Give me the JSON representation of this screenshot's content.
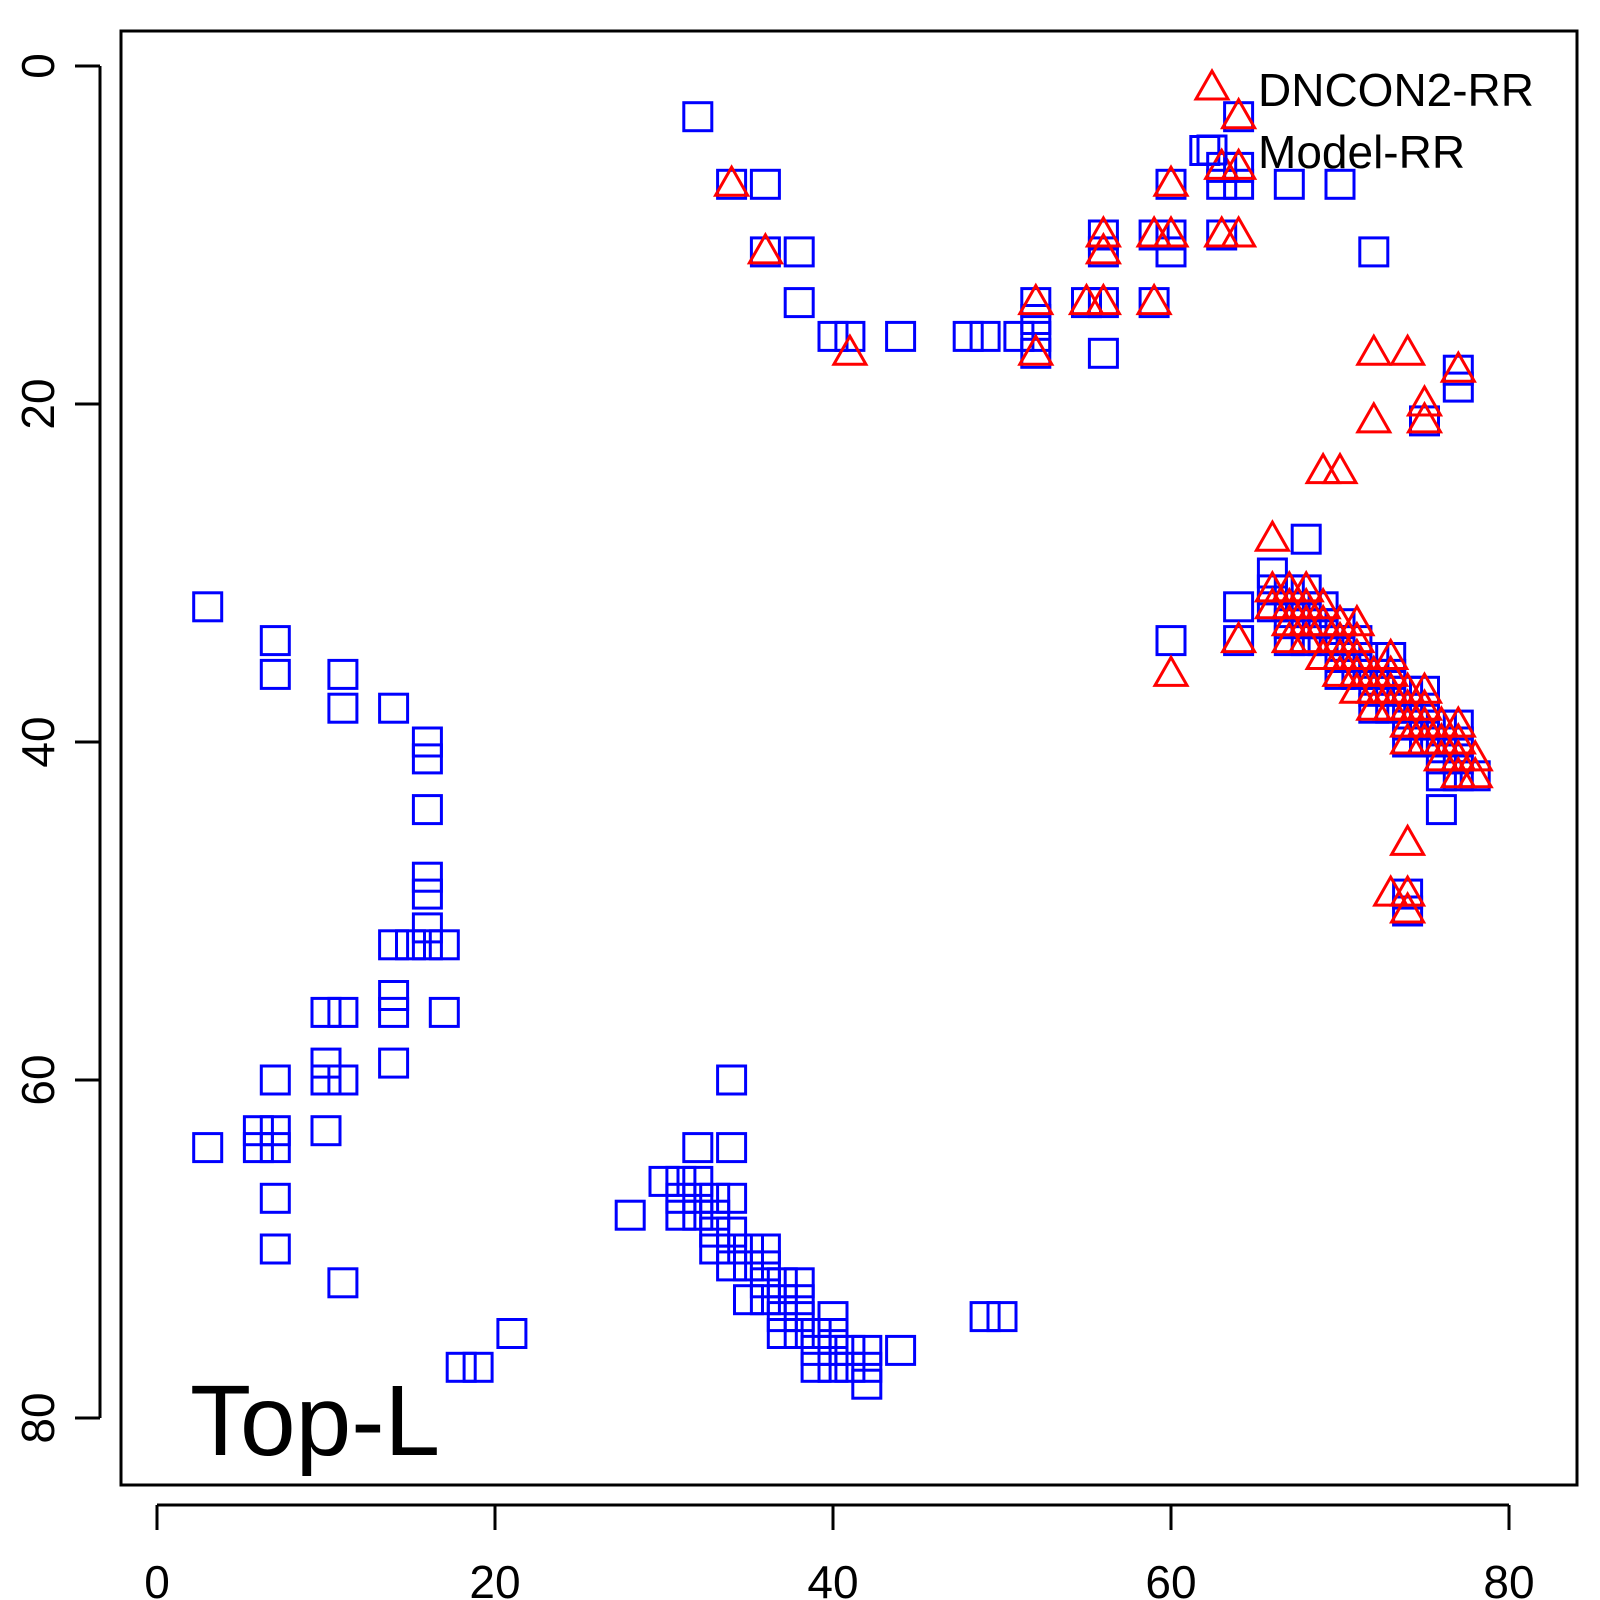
{
  "chart_data": {
    "type": "scatter",
    "xlim": [
      -2,
      84
    ],
    "ylim": [
      0,
      84
    ],
    "y_inverted": true,
    "x_ticks": [
      0,
      20,
      40,
      60,
      80
    ],
    "y_ticks": [
      0,
      20,
      40,
      60,
      80
    ],
    "annotation": "Top-L",
    "legend_position": "top-right",
    "series": [
      {
        "name": "DNCON2-RR",
        "marker": "triangle",
        "color": "#ff0000",
        "points": [
          [
            34,
            7
          ],
          [
            36,
            11
          ],
          [
            41,
            17
          ],
          [
            52,
            14
          ],
          [
            52,
            17
          ],
          [
            55,
            14
          ],
          [
            56,
            10
          ],
          [
            56,
            11
          ],
          [
            56,
            14
          ],
          [
            59,
            10
          ],
          [
            59,
            14
          ],
          [
            60,
            7
          ],
          [
            60,
            10
          ],
          [
            60,
            36
          ],
          [
            63,
            6
          ],
          [
            63,
            10
          ],
          [
            64,
            3
          ],
          [
            64,
            6
          ],
          [
            64,
            10
          ],
          [
            64,
            34
          ],
          [
            66,
            28
          ],
          [
            66,
            31
          ],
          [
            66,
            32
          ],
          [
            67,
            31
          ],
          [
            67,
            32
          ],
          [
            67,
            33
          ],
          [
            67,
            34
          ],
          [
            68,
            31
          ],
          [
            68,
            32
          ],
          [
            68,
            33
          ],
          [
            68,
            34
          ],
          [
            69,
            24
          ],
          [
            69,
            32
          ],
          [
            69,
            33
          ],
          [
            69,
            35
          ],
          [
            70,
            24
          ],
          [
            70,
            33
          ],
          [
            70,
            34
          ],
          [
            70,
            35
          ],
          [
            70,
            36
          ],
          [
            71,
            33
          ],
          [
            71,
            34
          ],
          [
            71,
            35
          ],
          [
            71,
            36
          ],
          [
            71,
            37
          ],
          [
            72,
            17
          ],
          [
            72,
            21
          ],
          [
            72,
            36
          ],
          [
            72,
            37
          ],
          [
            72,
            38
          ],
          [
            73,
            35
          ],
          [
            73,
            36
          ],
          [
            73,
            37
          ],
          [
            73,
            38
          ],
          [
            73,
            49
          ],
          [
            74,
            17
          ],
          [
            74,
            37
          ],
          [
            74,
            38
          ],
          [
            74,
            39
          ],
          [
            74,
            40
          ],
          [
            74,
            46
          ],
          [
            74,
            49
          ],
          [
            74,
            50
          ],
          [
            75,
            20
          ],
          [
            75,
            21
          ],
          [
            75,
            37
          ],
          [
            75,
            38
          ],
          [
            75,
            39
          ],
          [
            75,
            40
          ],
          [
            76,
            39
          ],
          [
            76,
            40
          ],
          [
            76,
            41
          ],
          [
            77,
            18
          ],
          [
            77,
            39
          ],
          [
            77,
            40
          ],
          [
            77,
            41
          ],
          [
            77,
            42
          ],
          [
            78,
            41
          ],
          [
            78,
            42
          ]
        ]
      },
      {
        "name": "Model-RR",
        "marker": "square",
        "color": "#0000ff",
        "points": [
          [
            3,
            32
          ],
          [
            3,
            64
          ],
          [
            6,
            63
          ],
          [
            6,
            64
          ],
          [
            7,
            34
          ],
          [
            7,
            36
          ],
          [
            7,
            60
          ],
          [
            7,
            63
          ],
          [
            7,
            64
          ],
          [
            7,
            67
          ],
          [
            7,
            70
          ],
          [
            10,
            56
          ],
          [
            10,
            59
          ],
          [
            10,
            60
          ],
          [
            10,
            63
          ],
          [
            11,
            36
          ],
          [
            11,
            38
          ],
          [
            11,
            56
          ],
          [
            11,
            60
          ],
          [
            11,
            72
          ],
          [
            14,
            38
          ],
          [
            14,
            52
          ],
          [
            14,
            55
          ],
          [
            14,
            56
          ],
          [
            14,
            59
          ],
          [
            15,
            52
          ],
          [
            16,
            40
          ],
          [
            16,
            41
          ],
          [
            16,
            44
          ],
          [
            16,
            48
          ],
          [
            16,
            49
          ],
          [
            16,
            51
          ],
          [
            16,
            52
          ],
          [
            17,
            52
          ],
          [
            17,
            56
          ],
          [
            18,
            77
          ],
          [
            19,
            77
          ],
          [
            21,
            75
          ],
          [
            28,
            68
          ],
          [
            30,
            66
          ],
          [
            31,
            66
          ],
          [
            31,
            67
          ],
          [
            31,
            68
          ],
          [
            32,
            3
          ],
          [
            32,
            64
          ],
          [
            32,
            66
          ],
          [
            32,
            67
          ],
          [
            32,
            68
          ],
          [
            33,
            67
          ],
          [
            33,
            68
          ],
          [
            33,
            69
          ],
          [
            33,
            70
          ],
          [
            34,
            7
          ],
          [
            34,
            60
          ],
          [
            34,
            64
          ],
          [
            34,
            67
          ],
          [
            34,
            69
          ],
          [
            34,
            70
          ],
          [
            34,
            71
          ],
          [
            35,
            70
          ],
          [
            35,
            71
          ],
          [
            35,
            73
          ],
          [
            36,
            7
          ],
          [
            36,
            11
          ],
          [
            36,
            70
          ],
          [
            36,
            71
          ],
          [
            36,
            72
          ],
          [
            36,
            73
          ],
          [
            37,
            72
          ],
          [
            37,
            73
          ],
          [
            37,
            74
          ],
          [
            37,
            75
          ],
          [
            38,
            11
          ],
          [
            38,
            14
          ],
          [
            38,
            72
          ],
          [
            38,
            73
          ],
          [
            38,
            74
          ],
          [
            38,
            75
          ],
          [
            39,
            75
          ],
          [
            39,
            76
          ],
          [
            39,
            77
          ],
          [
            40,
            16
          ],
          [
            40,
            74
          ],
          [
            40,
            75
          ],
          [
            40,
            76
          ],
          [
            40,
            77
          ],
          [
            41,
            16
          ],
          [
            41,
            76
          ],
          [
            41,
            77
          ],
          [
            42,
            76
          ],
          [
            42,
            77
          ],
          [
            42,
            78
          ],
          [
            44,
            16
          ],
          [
            44,
            76
          ],
          [
            48,
            16
          ],
          [
            49,
            16
          ],
          [
            49,
            74
          ],
          [
            50,
            74
          ],
          [
            51,
            16
          ],
          [
            52,
            14
          ],
          [
            52,
            15
          ],
          [
            52,
            16
          ],
          [
            52,
            17
          ],
          [
            55,
            14
          ],
          [
            56,
            10
          ],
          [
            56,
            11
          ],
          [
            56,
            14
          ],
          [
            56,
            17
          ],
          [
            59,
            10
          ],
          [
            59,
            14
          ],
          [
            60,
            7
          ],
          [
            60,
            10
          ],
          [
            60,
            11
          ],
          [
            60,
            34
          ],
          [
            62,
            5
          ],
          [
            63,
            6
          ],
          [
            63,
            7
          ],
          [
            63,
            10
          ],
          [
            64,
            3
          ],
          [
            64,
            6
          ],
          [
            64,
            7
          ],
          [
            64,
            32
          ],
          [
            64,
            34
          ],
          [
            66,
            30
          ],
          [
            66,
            31
          ],
          [
            66,
            32
          ],
          [
            67,
            7
          ],
          [
            67,
            31
          ],
          [
            67,
            32
          ],
          [
            67,
            33
          ],
          [
            67,
            34
          ],
          [
            68,
            28
          ],
          [
            68,
            31
          ],
          [
            68,
            32
          ],
          [
            68,
            33
          ],
          [
            68,
            34
          ],
          [
            69,
            32
          ],
          [
            69,
            33
          ],
          [
            69,
            34
          ],
          [
            70,
            7
          ],
          [
            70,
            33
          ],
          [
            70,
            34
          ],
          [
            70,
            35
          ],
          [
            70,
            36
          ],
          [
            71,
            34
          ],
          [
            71,
            35
          ],
          [
            71,
            36
          ],
          [
            72,
            11
          ],
          [
            72,
            35
          ],
          [
            72,
            36
          ],
          [
            72,
            37
          ],
          [
            72,
            38
          ],
          [
            73,
            35
          ],
          [
            73,
            36
          ],
          [
            73,
            37
          ],
          [
            73,
            38
          ],
          [
            74,
            37
          ],
          [
            74,
            38
          ],
          [
            74,
            39
          ],
          [
            74,
            40
          ],
          [
            74,
            49
          ],
          [
            74,
            50
          ],
          [
            75,
            21
          ],
          [
            75,
            37
          ],
          [
            75,
            38
          ],
          [
            75,
            39
          ],
          [
            75,
            40
          ],
          [
            76,
            39
          ],
          [
            76,
            40
          ],
          [
            76,
            41
          ],
          [
            76,
            42
          ],
          [
            76,
            44
          ],
          [
            77,
            18
          ],
          [
            77,
            19
          ],
          [
            77,
            39
          ],
          [
            77,
            40
          ],
          [
            77,
            41
          ],
          [
            77,
            42
          ],
          [
            78,
            42
          ]
        ]
      }
    ]
  }
}
